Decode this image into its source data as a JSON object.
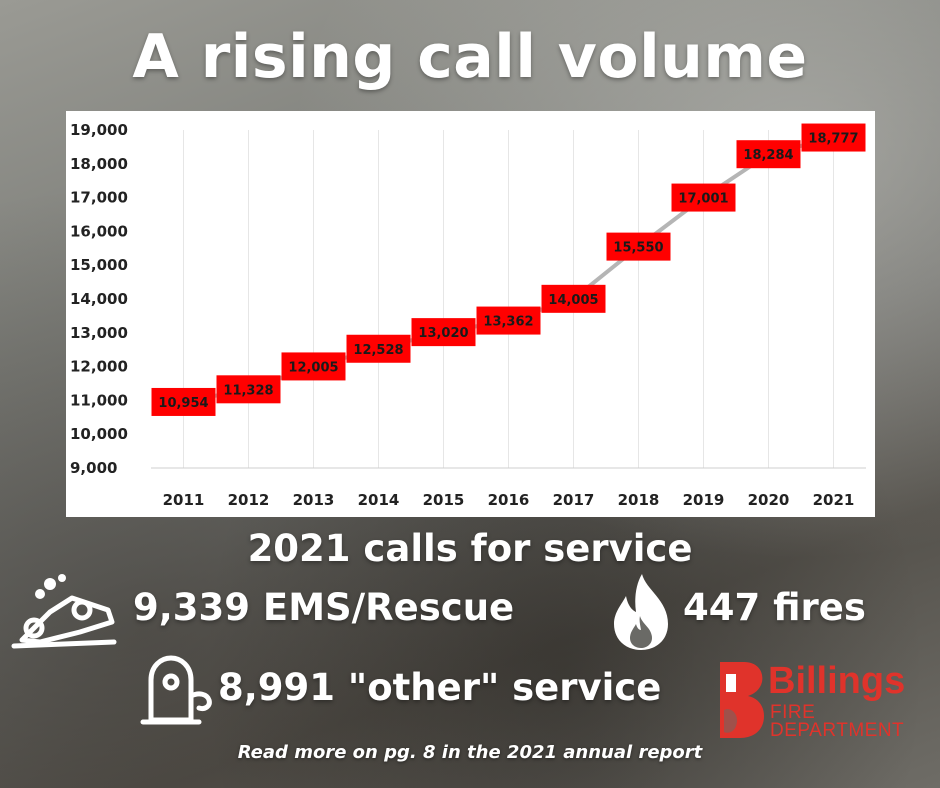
{
  "headline": "A rising call volume",
  "subhead": "2021 calls for service",
  "stats": {
    "ems": "9,339 EMS/Rescue",
    "fires": "447 fires",
    "other": "8,991 \"other\" service"
  },
  "footer": "Read more on pg. 8 in the 2021 annual report",
  "logo": {
    "name": "Billings",
    "line1": "FIRE",
    "line2": "DEPARTMENT"
  },
  "colors": {
    "label_box": "#ff0000",
    "line": "#b5b5b5",
    "brand": "#e0332b"
  },
  "chart_data": {
    "type": "line",
    "title": "",
    "xlabel": "",
    "ylabel": "",
    "categories": [
      "2011",
      "2012",
      "2013",
      "2014",
      "2015",
      "2016",
      "2017",
      "2018",
      "2019",
      "2020",
      "2021"
    ],
    "values": [
      10954,
      11328,
      12005,
      12528,
      13020,
      13362,
      14005,
      15550,
      17001,
      18284,
      18777
    ],
    "data_labels": [
      "10,954",
      "11,328",
      "12,005",
      "12,528",
      "13,020",
      "13,362",
      "14,005",
      "15,550",
      "17,001",
      "18,284",
      "18,777"
    ],
    "yticks": [
      "9,000",
      "10,000",
      "11,000",
      "12,000",
      "13,000",
      "14,000",
      "15,000",
      "16,000",
      "17,000",
      "18,000",
      "19,000"
    ],
    "ylim": [
      9000,
      19000
    ],
    "grid": "vertical",
    "legend": "none"
  }
}
